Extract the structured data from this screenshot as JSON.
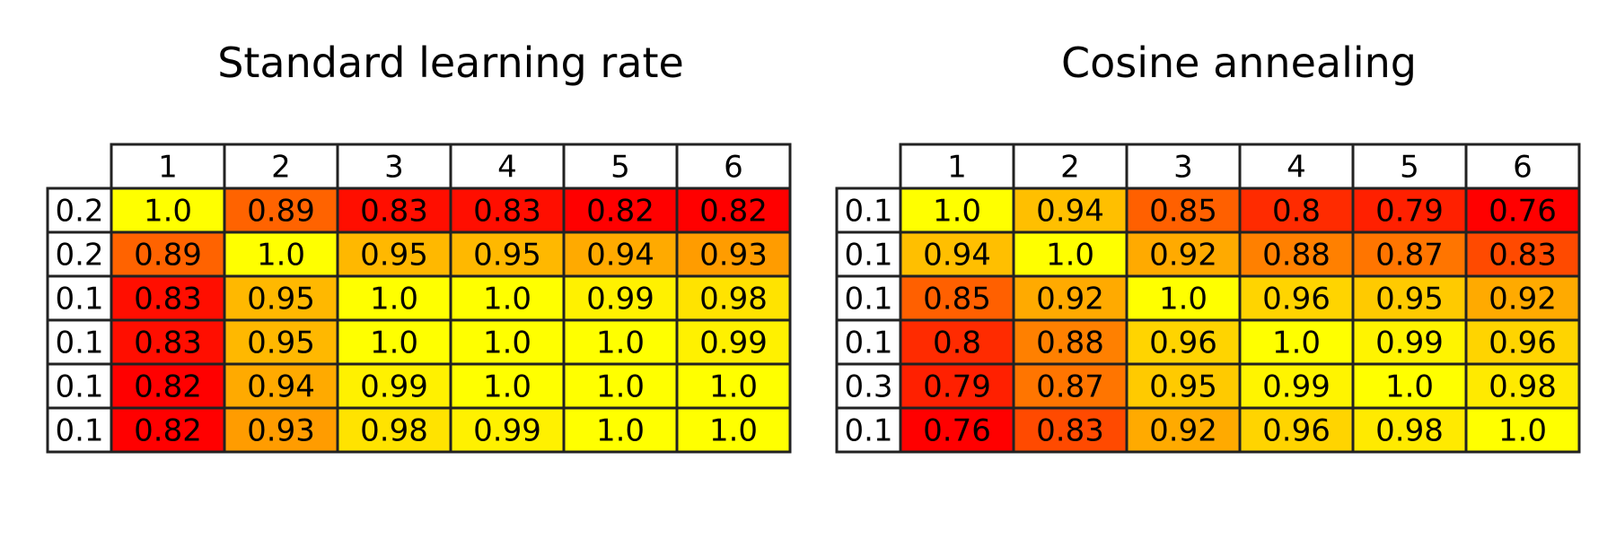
{
  "chart_data": [
    {
      "type": "table",
      "title": "Standard learning rate",
      "col_labels": [
        "1",
        "2",
        "3",
        "4",
        "5",
        "6"
      ],
      "row_labels": [
        "0.2",
        "0.2",
        "0.1",
        "0.1",
        "0.1",
        "0.1"
      ],
      "cells": [
        [
          "1.0",
          "0.89",
          "0.83",
          "0.83",
          "0.82",
          "0.82"
        ],
        [
          "0.89",
          "1.0",
          "0.95",
          "0.95",
          "0.94",
          "0.93"
        ],
        [
          "0.83",
          "0.95",
          "1.0",
          "1.0",
          "0.99",
          "0.98"
        ],
        [
          "0.83",
          "0.95",
          "1.0",
          "1.0",
          "1.0",
          "0.99"
        ],
        [
          "0.82",
          "0.94",
          "0.99",
          "1.0",
          "1.0",
          "1.0"
        ],
        [
          "0.82",
          "0.93",
          "0.98",
          "0.99",
          "1.0",
          "1.0"
        ]
      ],
      "color_range": [
        0.82,
        1.0
      ]
    },
    {
      "type": "table",
      "title": "Cosine annealing",
      "col_labels": [
        "1",
        "2",
        "3",
        "4",
        "5",
        "6"
      ],
      "row_labels": [
        "0.1",
        "0.1",
        "0.1",
        "0.1",
        "0.3",
        "0.1"
      ],
      "cells": [
        [
          "1.0",
          "0.94",
          "0.85",
          "0.8",
          "0.79",
          "0.76"
        ],
        [
          "0.94",
          "1.0",
          "0.92",
          "0.88",
          "0.87",
          "0.83"
        ],
        [
          "0.85",
          "0.92",
          "1.0",
          "0.96",
          "0.95",
          "0.92"
        ],
        [
          "0.8",
          "0.88",
          "0.96",
          "1.0",
          "0.99",
          "0.96"
        ],
        [
          "0.79",
          "0.87",
          "0.95",
          "0.99",
          "1.0",
          "0.98"
        ],
        [
          "0.76",
          "0.83",
          "0.92",
          "0.96",
          "0.98",
          "1.0"
        ]
      ],
      "color_range": [
        0.76,
        1.0
      ]
    }
  ],
  "colormap": "autumn",
  "colormap_colors": {
    "low": "#ff0000",
    "high": "#ffff00",
    "label_bg": "#ffffff",
    "border": "#222222"
  }
}
